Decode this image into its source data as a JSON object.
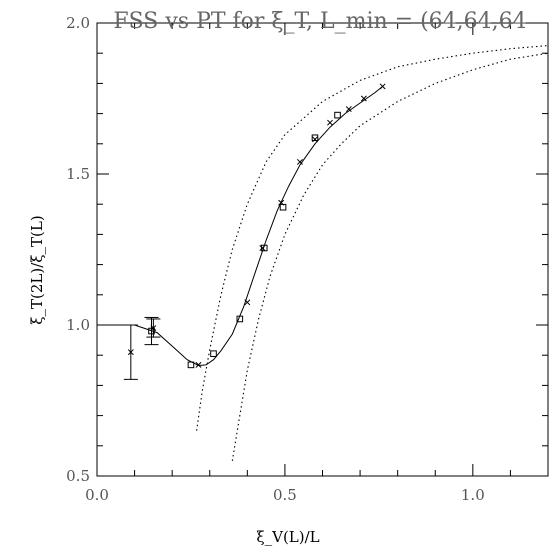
{
  "chart_data": {
    "type": "scatter",
    "title": "FSS vs PT for ξ_T, L_min = (64,64,64",
    "xlabel": "ξ_V(L)/L",
    "ylabel": "ξ_T(2L)/ξ_T(L)",
    "xlim": [
      0.0,
      1.2
    ],
    "ylim": [
      0.5,
      2.0
    ],
    "x_ticks": [
      0.0,
      0.5,
      1.0
    ],
    "x_tick_labels": [
      "0.0",
      "0.5",
      "1.0"
    ],
    "y_ticks": [
      0.5,
      1.0,
      1.5,
      2.0
    ],
    "y_tick_labels": [
      "0.5",
      "1.0",
      "1.5",
      "2.0"
    ],
    "grid": false,
    "series": [
      {
        "marker": "x",
        "points": [
          {
            "x": 0.09,
            "y": 0.91,
            "err": 0.09
          },
          {
            "x": 0.15,
            "y": 0.99,
            "err": 0.03
          },
          {
            "x": 0.27,
            "y": 0.868
          },
          {
            "x": 0.4,
            "y": 1.075
          },
          {
            "x": 0.44,
            "y": 1.255
          },
          {
            "x": 0.49,
            "y": 1.405
          },
          {
            "x": 0.54,
            "y": 1.54
          },
          {
            "x": 0.58,
            "y": 1.615
          },
          {
            "x": 0.62,
            "y": 1.67
          },
          {
            "x": 0.67,
            "y": 1.715
          },
          {
            "x": 0.71,
            "y": 1.75
          },
          {
            "x": 0.76,
            "y": 1.79
          }
        ]
      },
      {
        "marker": "square",
        "points": [
          {
            "x": 0.145,
            "y": 0.98,
            "err": 0.045
          },
          {
            "x": 0.25,
            "y": 0.868
          },
          {
            "x": 0.31,
            "y": 0.905
          },
          {
            "x": 0.38,
            "y": 1.02
          },
          {
            "x": 0.445,
            "y": 1.255
          },
          {
            "x": 0.495,
            "y": 1.39
          },
          {
            "x": 0.58,
            "y": 1.62
          },
          {
            "x": 0.64,
            "y": 1.695
          }
        ]
      }
    ],
    "curves": [
      {
        "style": "solid",
        "points": [
          [
            0.0,
            1.0
          ],
          [
            0.1,
            1.0
          ],
          [
            0.16,
            0.975
          ],
          [
            0.2,
            0.93
          ],
          [
            0.24,
            0.885
          ],
          [
            0.27,
            0.866
          ],
          [
            0.29,
            0.868
          ],
          [
            0.31,
            0.885
          ],
          [
            0.33,
            0.915
          ],
          [
            0.36,
            0.97
          ],
          [
            0.39,
            1.06
          ],
          [
            0.42,
            1.17
          ],
          [
            0.45,
            1.28
          ],
          [
            0.48,
            1.38
          ],
          [
            0.51,
            1.46
          ],
          [
            0.54,
            1.53
          ],
          [
            0.58,
            1.6
          ],
          [
            0.62,
            1.655
          ],
          [
            0.66,
            1.7
          ],
          [
            0.7,
            1.735
          ],
          [
            0.74,
            1.77
          ],
          [
            0.76,
            1.79
          ]
        ]
      },
      {
        "style": "dotted",
        "points": [
          [
            0.265,
            0.65
          ],
          [
            0.28,
            0.78
          ],
          [
            0.3,
            0.92
          ],
          [
            0.33,
            1.1
          ],
          [
            0.36,
            1.25
          ],
          [
            0.4,
            1.4
          ],
          [
            0.45,
            1.54
          ],
          [
            0.5,
            1.63
          ],
          [
            0.6,
            1.74
          ],
          [
            0.7,
            1.81
          ],
          [
            0.8,
            1.855
          ],
          [
            0.9,
            1.88
          ],
          [
            1.0,
            1.9
          ],
          [
            1.1,
            1.915
          ],
          [
            1.2,
            1.925
          ]
        ]
      },
      {
        "style": "dotted",
        "points": [
          [
            0.36,
            0.55
          ],
          [
            0.38,
            0.7
          ],
          [
            0.4,
            0.85
          ],
          [
            0.43,
            1.02
          ],
          [
            0.46,
            1.16
          ],
          [
            0.5,
            1.3
          ],
          [
            0.55,
            1.43
          ],
          [
            0.6,
            1.53
          ],
          [
            0.65,
            1.6
          ],
          [
            0.7,
            1.66
          ],
          [
            0.8,
            1.74
          ],
          [
            0.9,
            1.8
          ],
          [
            1.0,
            1.845
          ],
          [
            1.1,
            1.88
          ],
          [
            1.2,
            1.9
          ]
        ]
      }
    ]
  }
}
